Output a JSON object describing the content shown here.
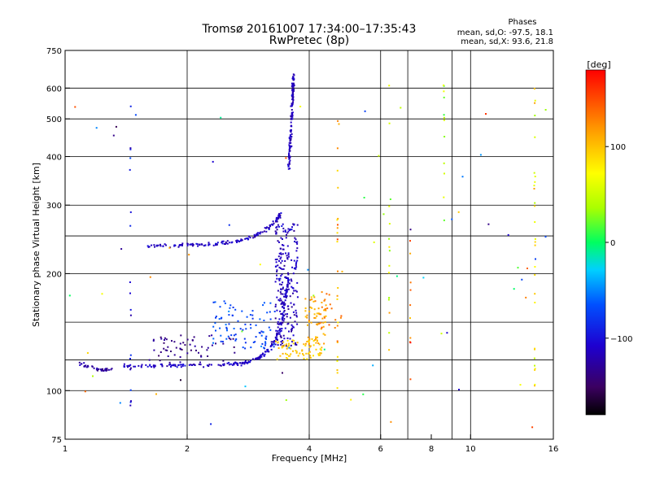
{
  "header": {
    "title_line1": "Tromsø 20161007 17:34:00–17:35:43",
    "title_line2": "RwPretec (8p)",
    "phases_title": "Phases",
    "phases_o": "mean, sd,O: -97.5, 18.1",
    "phases_x": "mean, sd,X: 93.6, 21.8"
  },
  "chart_data": {
    "type": "scatter",
    "xlabel": "Frequency [MHz]",
    "ylabel": "Stationary phase Virtual Height [km]",
    "xscale": "log",
    "yscale": "log",
    "xlim": [
      1,
      16
    ],
    "ylim": [
      75,
      750
    ],
    "x_ticks": [
      1,
      2,
      4,
      6,
      8,
      10,
      16
    ],
    "x_tick_labels": [
      "1",
      "2",
      "4",
      "6",
      "8",
      "10",
      "16"
    ],
    "x_grid": [
      2,
      4,
      6,
      7,
      9,
      10
    ],
    "y_ticks": [
      75,
      100,
      200,
      300,
      400,
      500,
      600,
      750
    ],
    "y_tick_labels": [
      "75",
      "100",
      "200",
      "300",
      "400",
      "500",
      "600",
      "750"
    ],
    "y_grid": [
      100,
      120,
      150,
      200,
      250,
      300,
      400,
      500,
      600
    ],
    "grid": true,
    "colorbar": {
      "label": "[deg]",
      "min": -180,
      "max": 180,
      "ticks": [
        -100,
        0,
        100
      ],
      "tick_labels": [
        "−100",
        "0",
        "100"
      ]
    },
    "traces": [
      {
        "kind": "curve",
        "pts": [
          [
            1.08,
            118
          ],
          [
            1.12,
            116
          ],
          [
            1.18,
            114
          ],
          [
            1.25,
            113
          ],
          [
            1.3,
            113
          ]
        ],
        "n": 40,
        "phase": -125,
        "spread": 0.012
      },
      {
        "kind": "curve",
        "pts": [
          [
            1.4,
            116
          ],
          [
            1.6,
            116
          ],
          [
            1.8,
            116
          ],
          [
            2.0,
            116
          ],
          [
            2.3,
            116
          ],
          [
            2.6,
            117
          ],
          [
            2.8,
            118
          ],
          [
            3.0,
            121
          ],
          [
            3.15,
            126
          ],
          [
            3.3,
            135
          ],
          [
            3.42,
            150
          ],
          [
            3.5,
            175
          ],
          [
            3.56,
            200
          ]
        ],
        "n": 220,
        "phase": -112,
        "spread": 0.012
      },
      {
        "kind": "curve",
        "pts": [
          [
            1.6,
            236
          ],
          [
            1.8,
            236
          ],
          [
            2.0,
            237
          ],
          [
            2.3,
            238
          ],
          [
            2.6,
            241
          ],
          [
            2.9,
            248
          ],
          [
            3.1,
            258
          ],
          [
            3.3,
            272
          ],
          [
            3.4,
            285
          ]
        ],
        "n": 150,
        "phase": -112,
        "spread": 0.012
      },
      {
        "kind": "curve",
        "pts": [
          [
            3.56,
            370
          ],
          [
            3.58,
            400
          ],
          [
            3.6,
            450
          ],
          [
            3.62,
            500
          ],
          [
            3.64,
            560
          ],
          [
            3.65,
            600
          ],
          [
            3.66,
            650
          ]
        ],
        "n": 140,
        "phase": -115,
        "spread": 0.01
      },
      {
        "kind": "blob",
        "x": [
          3.3,
          3.75
        ],
        "y": [
          130,
          270
        ],
        "n": 230,
        "phase": -115
      },
      {
        "kind": "blob",
        "x": [
          2.3,
          3.3
        ],
        "y": [
          128,
          170
        ],
        "n": 90,
        "phase": -70
      },
      {
        "kind": "blob",
        "x": [
          1.6,
          2.7
        ],
        "y": [
          118,
          140
        ],
        "n": 60,
        "phase": -135
      },
      {
        "kind": "blob",
        "x": [
          3.3,
          4.3
        ],
        "y": [
          120,
          135
        ],
        "n": 70,
        "phase": 95
      },
      {
        "kind": "blob",
        "x": [
          3.9,
          4.4
        ],
        "y": [
          130,
          175
        ],
        "n": 60,
        "phase": 110
      },
      {
        "kind": "blob",
        "x": [
          4.2,
          4.8
        ],
        "y": [
          145,
          180
        ],
        "n": 20,
        "phase": 130
      },
      {
        "kind": "vline",
        "x": 1.45,
        "y": [
          90,
          560
        ],
        "n": 20,
        "phase": -100
      },
      {
        "kind": "vline",
        "x": 4.7,
        "y": [
          100,
          500
        ],
        "n": 24,
        "phase": 110
      },
      {
        "kind": "vline",
        "x": 6.3,
        "y": [
          95,
          620
        ],
        "n": 14,
        "phase": 60
      },
      {
        "kind": "vline",
        "x": 7.1,
        "y": [
          105,
          280
        ],
        "n": 10,
        "phase": 140
      },
      {
        "kind": "vline",
        "x": 8.6,
        "y": [
          190,
          630
        ],
        "n": 12,
        "phase": 40
      },
      {
        "kind": "vline",
        "x": 14.4,
        "y": [
          100,
          610
        ],
        "n": 28,
        "phase": 80
      },
      {
        "kind": "scatter",
        "x": [
          1.0,
          16
        ],
        "y": [
          80,
          640
        ],
        "n": 70,
        "phase": 0
      }
    ]
  }
}
